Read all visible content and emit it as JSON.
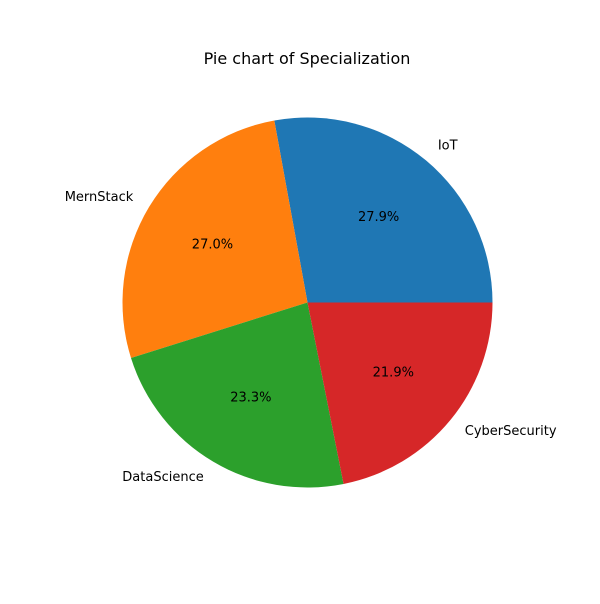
{
  "chart_data": {
    "type": "pie",
    "title": "Pie chart of Specialization",
    "categories": [
      "IoT",
      "MernStack",
      "DataScience",
      "CyberSecurity"
    ],
    "values": [
      27.9,
      27.0,
      23.3,
      21.9
    ],
    "percent_labels": [
      "27.9%",
      "27.0%",
      "23.3%",
      "21.9%"
    ],
    "colors": [
      "#1f77b4",
      "#ff7f0e",
      "#2ca02c",
      "#d62728"
    ],
    "start_angle_deg": 0,
    "direction": "counterclockwise",
    "legend": "none"
  }
}
